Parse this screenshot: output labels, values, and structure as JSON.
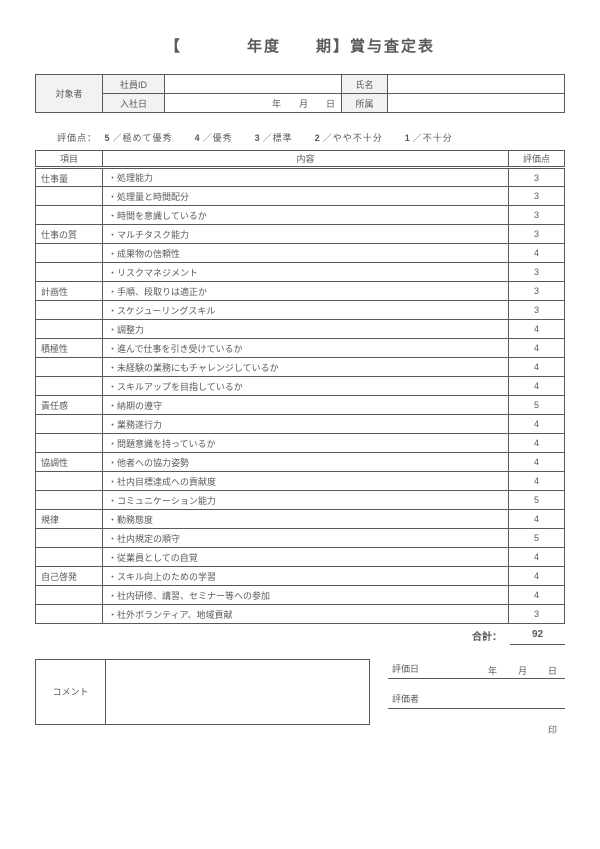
{
  "title": {
    "open": "【",
    "year_label": "年度",
    "term_label": "期】",
    "main": "賞与査定表"
  },
  "info": {
    "target_label": "対象者",
    "emp_id_label": "社員ID",
    "name_label": "氏名",
    "hire_label": "入社日",
    "hire_value": "年　　月　　日",
    "dept_label": "所属"
  },
  "scale": {
    "prefix": "評価点：",
    "p5": "5",
    "d5": "／極めて優秀",
    "p4": "4",
    "d4": "／優秀",
    "p3": "3",
    "d3": "／標準",
    "p2": "2",
    "d2": "／やや不十分",
    "p1": "1",
    "d1": "／不十分"
  },
  "eval_headers": {
    "cat": "項目",
    "content": "内容",
    "score": "評価点"
  },
  "rows": [
    {
      "cat": "仕事量",
      "content": "・処理能力",
      "score": "3"
    },
    {
      "cat": "",
      "content": "・処理量と時間配分",
      "score": "3"
    },
    {
      "cat": "",
      "content": "・時間を意識しているか",
      "score": "3"
    },
    {
      "cat": "仕事の質",
      "content": "・マルチタスク能力",
      "score": "3"
    },
    {
      "cat": "",
      "content": "・成果物の信頼性",
      "score": "4"
    },
    {
      "cat": "",
      "content": "・リスクマネジメント",
      "score": "3"
    },
    {
      "cat": "計画性",
      "content": "・手順、段取りは適正か",
      "score": "3"
    },
    {
      "cat": "",
      "content": "・スケジューリングスキル",
      "score": "3"
    },
    {
      "cat": "",
      "content": "・調整力",
      "score": "4"
    },
    {
      "cat": "積極性",
      "content": "・進んで仕事を引き受けているか",
      "score": "4"
    },
    {
      "cat": "",
      "content": "・未経験の業務にもチャレンジしているか",
      "score": "4"
    },
    {
      "cat": "",
      "content": "・スキルアップを目指しているか",
      "score": "4"
    },
    {
      "cat": "責任感",
      "content": "・納期の遵守",
      "score": "5"
    },
    {
      "cat": "",
      "content": "・業務遂行力",
      "score": "4"
    },
    {
      "cat": "",
      "content": "・問題意識を持っているか",
      "score": "4"
    },
    {
      "cat": "協調性",
      "content": "・他者への協力姿勢",
      "score": "4"
    },
    {
      "cat": "",
      "content": "・社内目標達成への貢献度",
      "score": "4"
    },
    {
      "cat": "",
      "content": "・コミュニケーション能力",
      "score": "5"
    },
    {
      "cat": "規律",
      "content": "・勤務態度",
      "score": "4"
    },
    {
      "cat": "",
      "content": "・社内規定の順守",
      "score": "5"
    },
    {
      "cat": "",
      "content": "・従業員としての自覚",
      "score": "4"
    },
    {
      "cat": "自己啓発",
      "content": "・スキル向上のための学習",
      "score": "4"
    },
    {
      "cat": "",
      "content": "・社内研修、講習、セミナー等への参加",
      "score": "4"
    },
    {
      "cat": "",
      "content": "・社外ボランティア、地域貢献",
      "score": "3"
    }
  ],
  "total": {
    "label": "合計：",
    "value": "92"
  },
  "footer": {
    "comment_label": "コメント",
    "eval_date_label": "評価日",
    "ymd": "年　月　日",
    "evaluator_label": "評価者",
    "seal": "印"
  },
  "columns": {
    "cat_w": 67,
    "content_w": 407,
    "score_w": 56
  }
}
